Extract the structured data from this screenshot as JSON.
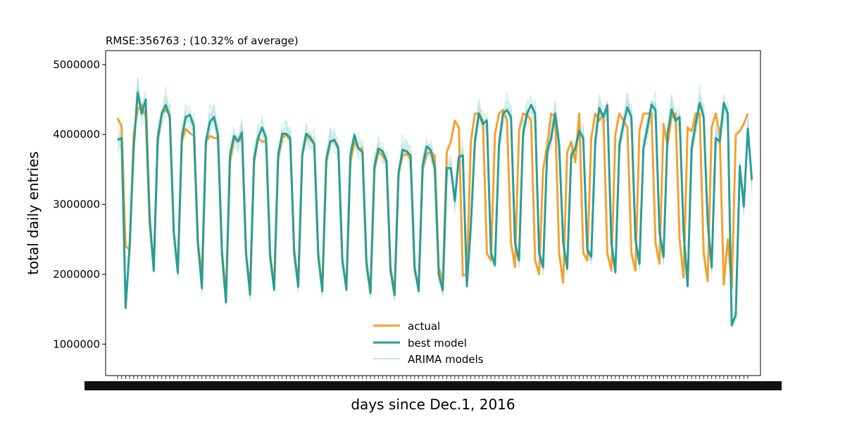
{
  "chart_data": {
    "type": "line",
    "title": "RMSE:356763 ; (10.32% of average)",
    "xlabel": "days since Dec.1, 2016",
    "ylabel": "total daily entries",
    "ylim": [
      550000,
      5200000
    ],
    "yticks": [
      1000000,
      2000000,
      3000000,
      4000000,
      5000000
    ],
    "ytick_labels": [
      "1000000",
      "2000000",
      "3000000",
      "4000000",
      "5000000"
    ],
    "x_tick_labels_note": "dense overlapping date tick labels (illegible)",
    "legend_placement": "lower-center",
    "grid": false,
    "colors": {
      "actual": "#f5a030",
      "best_model": "#2a9d95",
      "arima": "#a8dcd6"
    },
    "series": [
      {
        "name": "actual",
        "values": [
          4230000,
          4120000,
          2400000,
          2350000,
          4000000,
          4350000,
          4430000,
          4250000,
          2700000,
          2100000,
          3900000,
          4300000,
          4350000,
          4280000,
          2600000,
          2050000,
          3900000,
          4080000,
          4020000,
          3980000,
          2450000,
          2000000,
          3900000,
          3980000,
          3950000,
          3950000,
          2350000,
          1700000,
          3600000,
          3950000,
          3900000,
          3950000,
          2300000,
          1800000,
          3600000,
          3950000,
          3900000,
          3900000,
          2300000,
          1800000,
          3650000,
          3950000,
          4000000,
          3920000,
          2350000,
          1850000,
          3700000,
          3980000,
          3930000,
          3870000,
          2300000,
          1800000,
          3600000,
          3900000,
          3930000,
          3820000,
          2200000,
          1800000,
          3600000,
          3900000,
          3800000,
          3800000,
          2200000,
          1750000,
          3500000,
          3750000,
          3700000,
          3600000,
          2100000,
          1750000,
          3450000,
          3700000,
          3720000,
          3650000,
          2050000,
          1800000,
          3500000,
          3720000,
          3750000,
          3700000,
          2100000,
          1900000,
          3750000,
          3900000,
          4200000,
          4100000,
          1980000,
          2000000,
          3900000,
          4300000,
          4300000,
          4200000,
          2300000,
          2200000,
          4000000,
          4300000,
          4350000,
          4200000,
          2450000,
          2100000,
          4050000,
          4300000,
          4280000,
          4200000,
          2200000,
          2000000,
          3500000,
          3850000,
          4300000,
          4250000,
          2300000,
          1880000,
          3750000,
          3900000,
          3600000,
          4300000,
          2300000,
          2200000,
          3950000,
          4300000,
          4200000,
          4300000,
          2300000,
          2050000,
          4000000,
          4300000,
          4200000,
          4100000,
          2300000,
          2050000,
          4050000,
          4300000,
          4300000,
          4300000,
          2450000,
          2150000,
          4150000,
          3850000,
          4250000,
          4300000,
          2500000,
          1950000,
          4100000,
          4050000,
          4300000,
          4300000,
          2300000,
          1900000,
          4100000,
          4300000,
          4000000,
          1850000,
          2500000,
          1800000,
          4000000,
          4050000,
          4150000,
          4300000
        ]
      },
      {
        "name": "best model",
        "values": [
          3920000,
          3950000,
          1520000,
          2400000,
          3800000,
          4600000,
          4300000,
          4500000,
          2800000,
          2050000,
          3950000,
          4300000,
          4420000,
          4250000,
          2600000,
          2020000,
          3950000,
          4250000,
          4280000,
          4120000,
          2450000,
          1800000,
          3900000,
          4180000,
          4250000,
          4000000,
          2300000,
          1600000,
          3700000,
          3980000,
          3900000,
          4030000,
          2300000,
          1710000,
          3650000,
          3950000,
          4100000,
          3950000,
          2250000,
          1780000,
          3700000,
          4010000,
          4010000,
          3950000,
          2300000,
          1820000,
          3700000,
          4010000,
          3960000,
          3860000,
          2250000,
          1760000,
          3650000,
          3900000,
          3920000,
          3800000,
          2200000,
          1780000,
          3700000,
          3990000,
          3800000,
          3750000,
          2150000,
          1730000,
          3550000,
          3800000,
          3760000,
          3620000,
          2050000,
          1700000,
          3450000,
          3780000,
          3760000,
          3700000,
          2100000,
          1760000,
          3550000,
          3830000,
          3780000,
          3520000,
          2000000,
          1770000,
          3520000,
          3520000,
          3050000,
          3680000,
          3700000,
          1830000,
          2700000,
          3900000,
          4300000,
          4150000,
          4200000,
          2300000,
          2130000,
          3850000,
          4300000,
          4350000,
          4250000,
          2450000,
          2200000,
          4000000,
          4300000,
          4420000,
          4300000,
          2300000,
          2100000,
          3750000,
          3950000,
          4300000,
          3850000,
          2450000,
          2080000,
          3700000,
          3800000,
          4050000,
          3950000,
          2350000,
          2250000,
          3900000,
          4380000,
          4250000,
          4420000,
          2450000,
          2030000,
          3850000,
          4150000,
          4390000,
          4250000,
          2500000,
          2150000,
          3800000,
          4100000,
          4430000,
          4350000,
          2600000,
          2250000,
          4000000,
          4360000,
          4200000,
          4250000,
          2600000,
          1830000,
          3800000,
          4150000,
          4450000,
          4250000,
          2750000,
          2100000,
          3950000,
          3900000,
          4450000,
          4300000,
          1270000,
          1420000,
          3550000,
          2970000,
          4080000,
          3350000
        ]
      },
      {
        "name": "ARIMA models",
        "values": []
      }
    ]
  }
}
